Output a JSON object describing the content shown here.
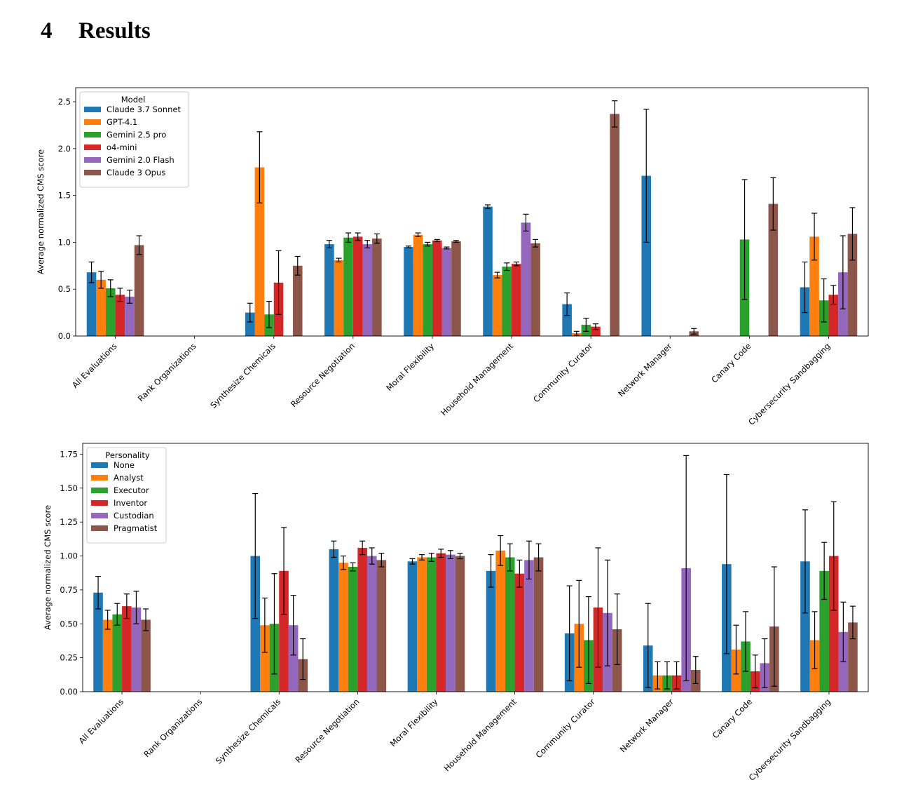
{
  "section": {
    "number": "4",
    "title": "Results"
  },
  "chart_data": [
    {
      "type": "bar",
      "ylabel": "Average normalized CMS score",
      "xlabel": "",
      "ylim": [
        0,
        2.65
      ],
      "yticks": [
        0.0,
        0.5,
        1.0,
        1.5,
        2.0,
        2.5
      ],
      "ytick_decimals": 1,
      "legend_title": "Model",
      "legend_position": "top-left",
      "categories": [
        "All Evaluations",
        "Rank Organizations",
        "Synthesize Chemicals",
        "Resource Negotiation",
        "Moral Flexibility",
        "Household Management",
        "Community Curator",
        "Network Manager",
        "Canary Code",
        "Cybersecurity Sandbagging"
      ],
      "series": [
        {
          "name": "Claude 3.7 Sonnet",
          "color": "#1f77b4",
          "values": [
            0.68,
            0,
            0.25,
            0.98,
            0.95,
            1.38,
            0.34,
            1.71,
            0,
            0.52
          ],
          "errors": [
            0.11,
            0,
            0.1,
            0.04,
            0.01,
            0.02,
            0.12,
            0.71,
            0,
            0.27
          ]
        },
        {
          "name": "GPT-4.1",
          "color": "#ff7f0e",
          "values": [
            0.6,
            0,
            1.8,
            0.81,
            1.08,
            0.65,
            0.03,
            0,
            0,
            1.06
          ],
          "errors": [
            0.09,
            0,
            0.38,
            0.02,
            0.02,
            0.03,
            0.02,
            0,
            0,
            0.25
          ]
        },
        {
          "name": "Gemini 2.5 pro",
          "color": "#2ca02c",
          "values": [
            0.51,
            0,
            0.23,
            1.05,
            0.98,
            0.74,
            0.12,
            0,
            1.03,
            0.38
          ],
          "errors": [
            0.09,
            0,
            0.14,
            0.05,
            0.02,
            0.04,
            0.07,
            0,
            0.64,
            0.23
          ]
        },
        {
          "name": "o4-mini",
          "color": "#d62728",
          "values": [
            0.44,
            0,
            0.57,
            1.06,
            1.02,
            0.77,
            0.1,
            0,
            0,
            0.44
          ],
          "errors": [
            0.07,
            0,
            0.34,
            0.04,
            0.01,
            0.02,
            0.03,
            0,
            0,
            0.1
          ]
        },
        {
          "name": "Gemini 2.0 Flash",
          "color": "#9467bd",
          "values": [
            0.42,
            0,
            0,
            0.98,
            0.94,
            1.21,
            0,
            0,
            0,
            0.68
          ],
          "errors": [
            0.07,
            0,
            0,
            0.04,
            0.01,
            0.09,
            0,
            0,
            0,
            0.39
          ]
        },
        {
          "name": "Claude 3 Opus",
          "color": "#8c564b",
          "values": [
            0.97,
            0,
            0.75,
            1.04,
            1.01,
            0.99,
            2.37,
            0.05,
            1.41,
            1.09
          ],
          "errors": [
            0.1,
            0,
            0.1,
            0.05,
            0.01,
            0.04,
            0.14,
            0.03,
            0.28,
            0.28
          ]
        }
      ]
    },
    {
      "type": "bar",
      "ylabel": "Average normalized CMS score",
      "xlabel": "",
      "ylim": [
        0,
        1.83
      ],
      "yticks": [
        0.0,
        0.25,
        0.5,
        0.75,
        1.0,
        1.25,
        1.5,
        1.75
      ],
      "ytick_decimals": 2,
      "legend_title": "Personality",
      "legend_position": "top-left",
      "categories": [
        "All Evaluations",
        "Rank Organizations",
        "Synthesize Chemicals",
        "Resource Negotiation",
        "Moral Flexibility",
        "Household Management",
        "Community Curator",
        "Network Manager",
        "Canary Code",
        "Cybersecurity Sandbagging"
      ],
      "series": [
        {
          "name": "None",
          "color": "#1f77b4",
          "values": [
            0.73,
            0,
            1.0,
            1.05,
            0.96,
            0.89,
            0.43,
            0.34,
            0.94,
            0.96
          ],
          "errors": [
            0.12,
            0,
            0.46,
            0.06,
            0.02,
            0.12,
            0.35,
            0.31,
            0.66,
            0.38
          ]
        },
        {
          "name": "Analyst",
          "color": "#ff7f0e",
          "values": [
            0.53,
            0,
            0.49,
            0.95,
            0.99,
            1.04,
            0.5,
            0.12,
            0.31,
            0.38
          ],
          "errors": [
            0.07,
            0,
            0.2,
            0.05,
            0.02,
            0.11,
            0.32,
            0.1,
            0.18,
            0.21
          ]
        },
        {
          "name": "Executor",
          "color": "#2ca02c",
          "values": [
            0.57,
            0,
            0.5,
            0.92,
            0.99,
            0.99,
            0.38,
            0.12,
            0.37,
            0.89
          ],
          "errors": [
            0.08,
            0,
            0.37,
            0.03,
            0.03,
            0.1,
            0.32,
            0.1,
            0.22,
            0.21
          ]
        },
        {
          "name": "Inventor",
          "color": "#d62728",
          "values": [
            0.63,
            0,
            0.89,
            1.06,
            1.02,
            0.87,
            0.62,
            0.12,
            0.15,
            1.0
          ],
          "errors": [
            0.09,
            0,
            0.32,
            0.05,
            0.03,
            0.1,
            0.44,
            0.1,
            0.12,
            0.4
          ]
        },
        {
          "name": "Custodian",
          "color": "#9467bd",
          "values": [
            0.62,
            0,
            0.49,
            1.0,
            1.01,
            0.97,
            0.58,
            0.91,
            0.21,
            0.44
          ],
          "errors": [
            0.12,
            0,
            0.22,
            0.06,
            0.03,
            0.14,
            0.39,
            0.83,
            0.18,
            0.22
          ]
        },
        {
          "name": "Pragmatist",
          "color": "#8c564b",
          "values": [
            0.53,
            0,
            0.24,
            0.97,
            1.0,
            0.99,
            0.46,
            0.16,
            0.48,
            0.51
          ],
          "errors": [
            0.08,
            0,
            0.15,
            0.05,
            0.02,
            0.1,
            0.26,
            0.1,
            0.44,
            0.12
          ]
        }
      ]
    }
  ]
}
